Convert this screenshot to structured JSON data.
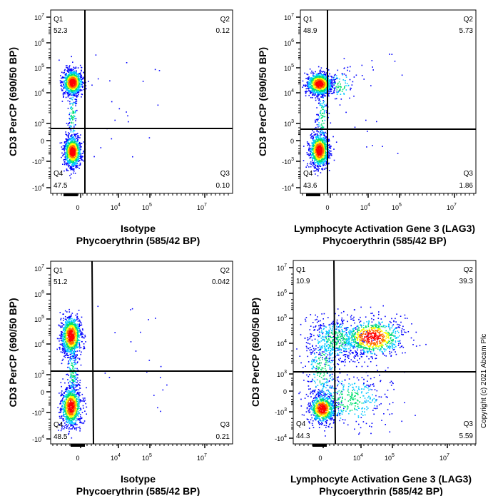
{
  "chart_data": [
    {
      "type": "scatter",
      "panel": "top-left",
      "xlabel": "Isotype",
      "xlabel2": "Phycoerythrin  (585/42 BP)",
      "ylabel": "CD3 PerCP (690/50 BP)",
      "quadrants": {
        "Q1": "52.3",
        "Q2": "0.12",
        "Q3": "0.10",
        "Q4": "47.5"
      }
    },
    {
      "type": "scatter",
      "panel": "top-right",
      "xlabel": "Lymphocyte Activation Gene 3 (LAG3)",
      "xlabel2": "Phycoerythrin  (585/42 BP)",
      "ylabel": "CD3 PerCP (690/50 BP)",
      "quadrants": {
        "Q1": "48.9",
        "Q2": "5.73",
        "Q3": "1.86",
        "Q4": "43.6"
      }
    },
    {
      "type": "scatter",
      "panel": "bottom-left",
      "xlabel": "Isotype",
      "xlabel2": "Phycoerythrin  (585/42 BP)",
      "ylabel": "CD3 PerCP (690/50 BP)",
      "quadrants": {
        "Q1": "51.2",
        "Q2": "0.042",
        "Q3": "0.21",
        "Q4": "48.5"
      }
    },
    {
      "type": "scatter",
      "panel": "bottom-right",
      "xlabel": "Lymphocyte Activation Gene 3 (LAG3)",
      "xlabel2": "Phycoerythrin  (585/42 BP)",
      "ylabel": "CD3 PerCP (690/50 BP)",
      "quadrants": {
        "Q1": "10.9",
        "Q2": "39.3",
        "Q3": "5.59",
        "Q4": "44.3"
      }
    }
  ],
  "axes": {
    "y_ticks": [
      {
        "base": "10",
        "exp": "7"
      },
      {
        "base": "10",
        "exp": "6"
      },
      {
        "base": "10",
        "exp": "5"
      },
      {
        "base": "10",
        "exp": "4"
      },
      {
        "base": "10",
        "exp": "3"
      },
      {
        "base": "0",
        "exp": ""
      },
      {
        "base": "-10",
        "exp": "3"
      },
      {
        "base": "-10",
        "exp": "4"
      }
    ],
    "x_ticks": [
      {
        "base": "0",
        "exp": ""
      },
      {
        "base": "10",
        "exp": "4"
      },
      {
        "base": "10",
        "exp": "5"
      },
      {
        "base": "10",
        "exp": "7"
      }
    ],
    "scale": "biexponential"
  },
  "quadrant_names": [
    "Q1",
    "Q2",
    "Q3",
    "Q4"
  ],
  "copyright": "Copyright (c) 2021 Abcam Plc",
  "colors": {
    "density": [
      "#0000ff",
      "#00c8ff",
      "#00e070",
      "#ffff00",
      "#ff7000",
      "#ff0000"
    ]
  }
}
